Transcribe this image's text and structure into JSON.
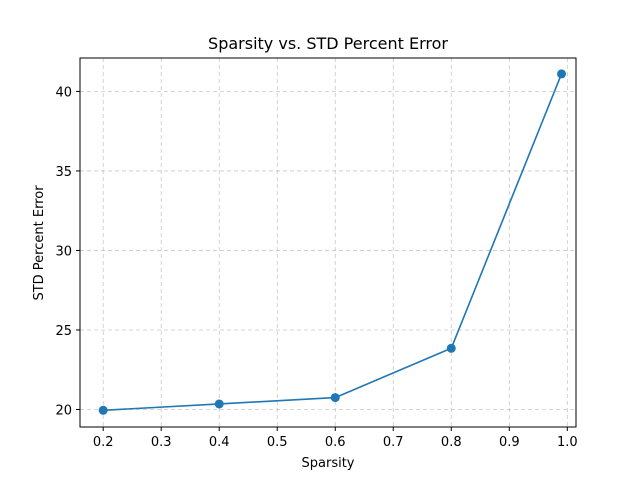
{
  "chart_data": {
    "type": "line",
    "title": "Sparsity vs. STD Percent Error",
    "xlabel": "Sparsity",
    "ylabel": "STD Percent Error",
    "xlim": [
      0.16,
      1.015
    ],
    "ylim": [
      18.9,
      42.1
    ],
    "xticks": [
      "0.2",
      "0.3",
      "0.4",
      "0.5",
      "0.6",
      "0.7",
      "0.8",
      "0.9",
      "1.0"
    ],
    "yticks": [
      "20",
      "25",
      "30",
      "35",
      "40"
    ],
    "grid": true,
    "series": [
      {
        "color": "#1f77b4",
        "marker": "circle",
        "x": [
          0.2,
          0.4,
          0.6,
          0.8,
          0.99
        ],
        "y": [
          19.95,
          20.35,
          20.75,
          23.85,
          41.1
        ]
      }
    ]
  }
}
